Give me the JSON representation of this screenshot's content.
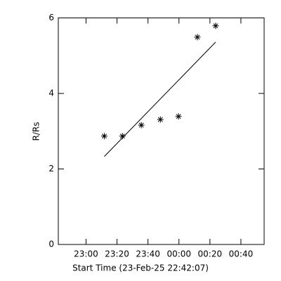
{
  "chart_data": {
    "type": "scatter",
    "xlabel": "Start Time (23-Feb-25 22:42:07)",
    "ylabel": "R/Rs",
    "x": [
      11.8,
      23.5,
      35.7,
      48.0,
      59.7,
      71.9,
      83.7
    ],
    "values": [
      2.87,
      2.87,
      3.16,
      3.31,
      3.39,
      5.49,
      5.79
    ],
    "color": "#000000",
    "fit": {
      "x": [
        11.8,
        83.7
      ],
      "values": [
        2.33,
        5.36
      ]
    },
    "xlim": [
      -17.9,
      115
    ],
    "xticks": [
      {
        "value": 0,
        "label": "23:00"
      },
      {
        "value": 20,
        "label": "23:20"
      },
      {
        "value": 40,
        "label": "23:40"
      },
      {
        "value": 60,
        "label": "00:00"
      },
      {
        "value": 80,
        "label": "00:20"
      },
      {
        "value": 100,
        "label": "00:40"
      }
    ],
    "ylim": [
      0,
      6
    ],
    "yticks": [
      0,
      2,
      4,
      6
    ]
  }
}
